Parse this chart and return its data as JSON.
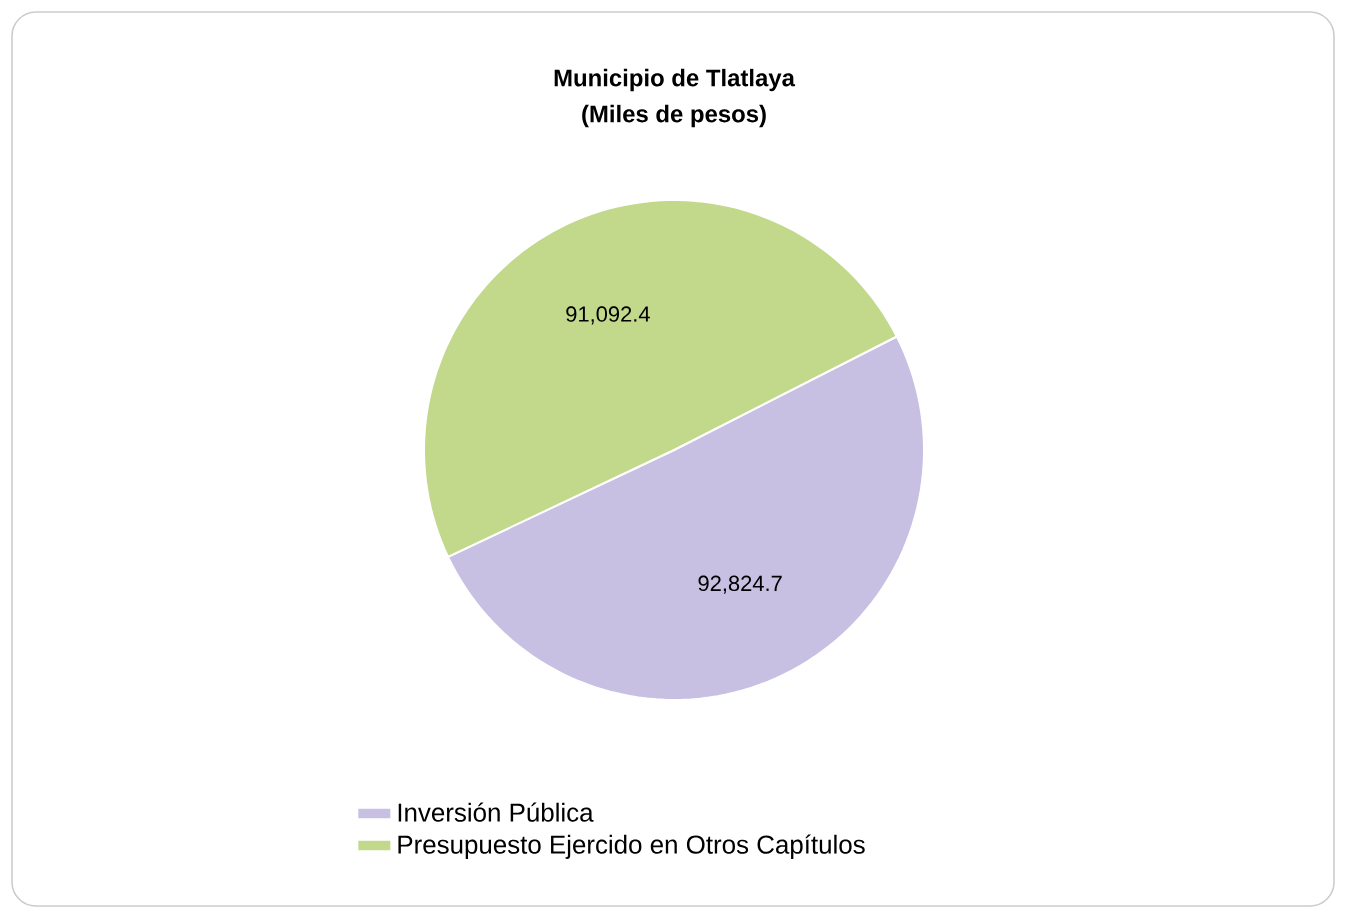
{
  "chart_data": {
    "type": "pie",
    "title": "Municipio de Tlatlaya",
    "subtitle": "(Miles de pesos)",
    "categories": [
      "Inversión Pública",
      "Presupuesto Ejercido en Otros Capítulos"
    ],
    "values": [
      92824.7,
      91092.4
    ],
    "colors": [
      "#c8c0e2",
      "#c2d98c"
    ],
    "value_labels": [
      "92,824.7",
      "91,092.4"
    ],
    "legend": "bottom"
  }
}
